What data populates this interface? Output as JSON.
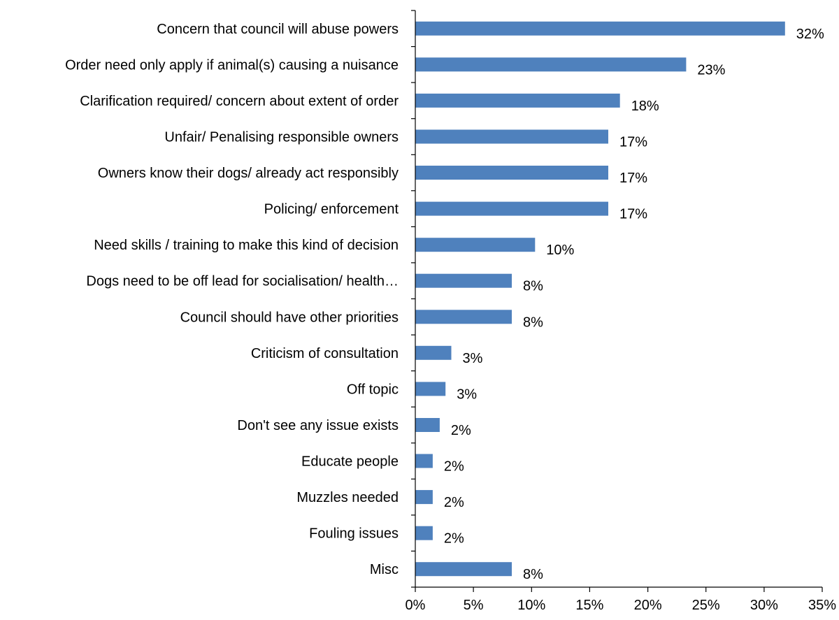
{
  "chart_data": {
    "type": "bar",
    "orientation": "horizontal",
    "title": "",
    "xlabel": "",
    "ylabel": "",
    "categories": [
      "Concern that council will abuse powers",
      "Order need only apply if animal(s) causing a nuisance",
      "Clarification required/ concern about extent of order",
      "Unfair/ Penalising responsible owners",
      "Owners know their dogs/ already act responsibly",
      "Policing/ enforcement",
      "Need skills / training to make this kind of decision",
      "Dogs need to be off lead for socialisation/ health…",
      "Council should have other priorities",
      "Criticism of consultation",
      "Off topic",
      "Don't see any issue exists",
      "Educate people",
      "Muzzles needed",
      "Fouling issues",
      "Misc"
    ],
    "values": [
      31.8,
      23.3,
      17.6,
      16.6,
      16.6,
      16.6,
      10.3,
      8.3,
      8.3,
      3.1,
      2.6,
      2.1,
      1.5,
      1.5,
      1.5,
      8.3
    ],
    "data_labels": [
      "32%",
      "23%",
      "18%",
      "17%",
      "17%",
      "17%",
      "10%",
      "8%",
      "8%",
      "3%",
      "3%",
      "2%",
      "2%",
      "2%",
      "2%",
      "8%"
    ],
    "xlim": [
      0,
      35
    ],
    "x_ticks": [
      0,
      5,
      10,
      15,
      20,
      25,
      30,
      35
    ],
    "x_tick_labels": [
      "0%",
      "5%",
      "10%",
      "15%",
      "20%",
      "25%",
      "30%",
      "35%"
    ],
    "grid": false,
    "legend": "none",
    "bar_color": "#4f81bd",
    "axis_color": "#000000"
  }
}
